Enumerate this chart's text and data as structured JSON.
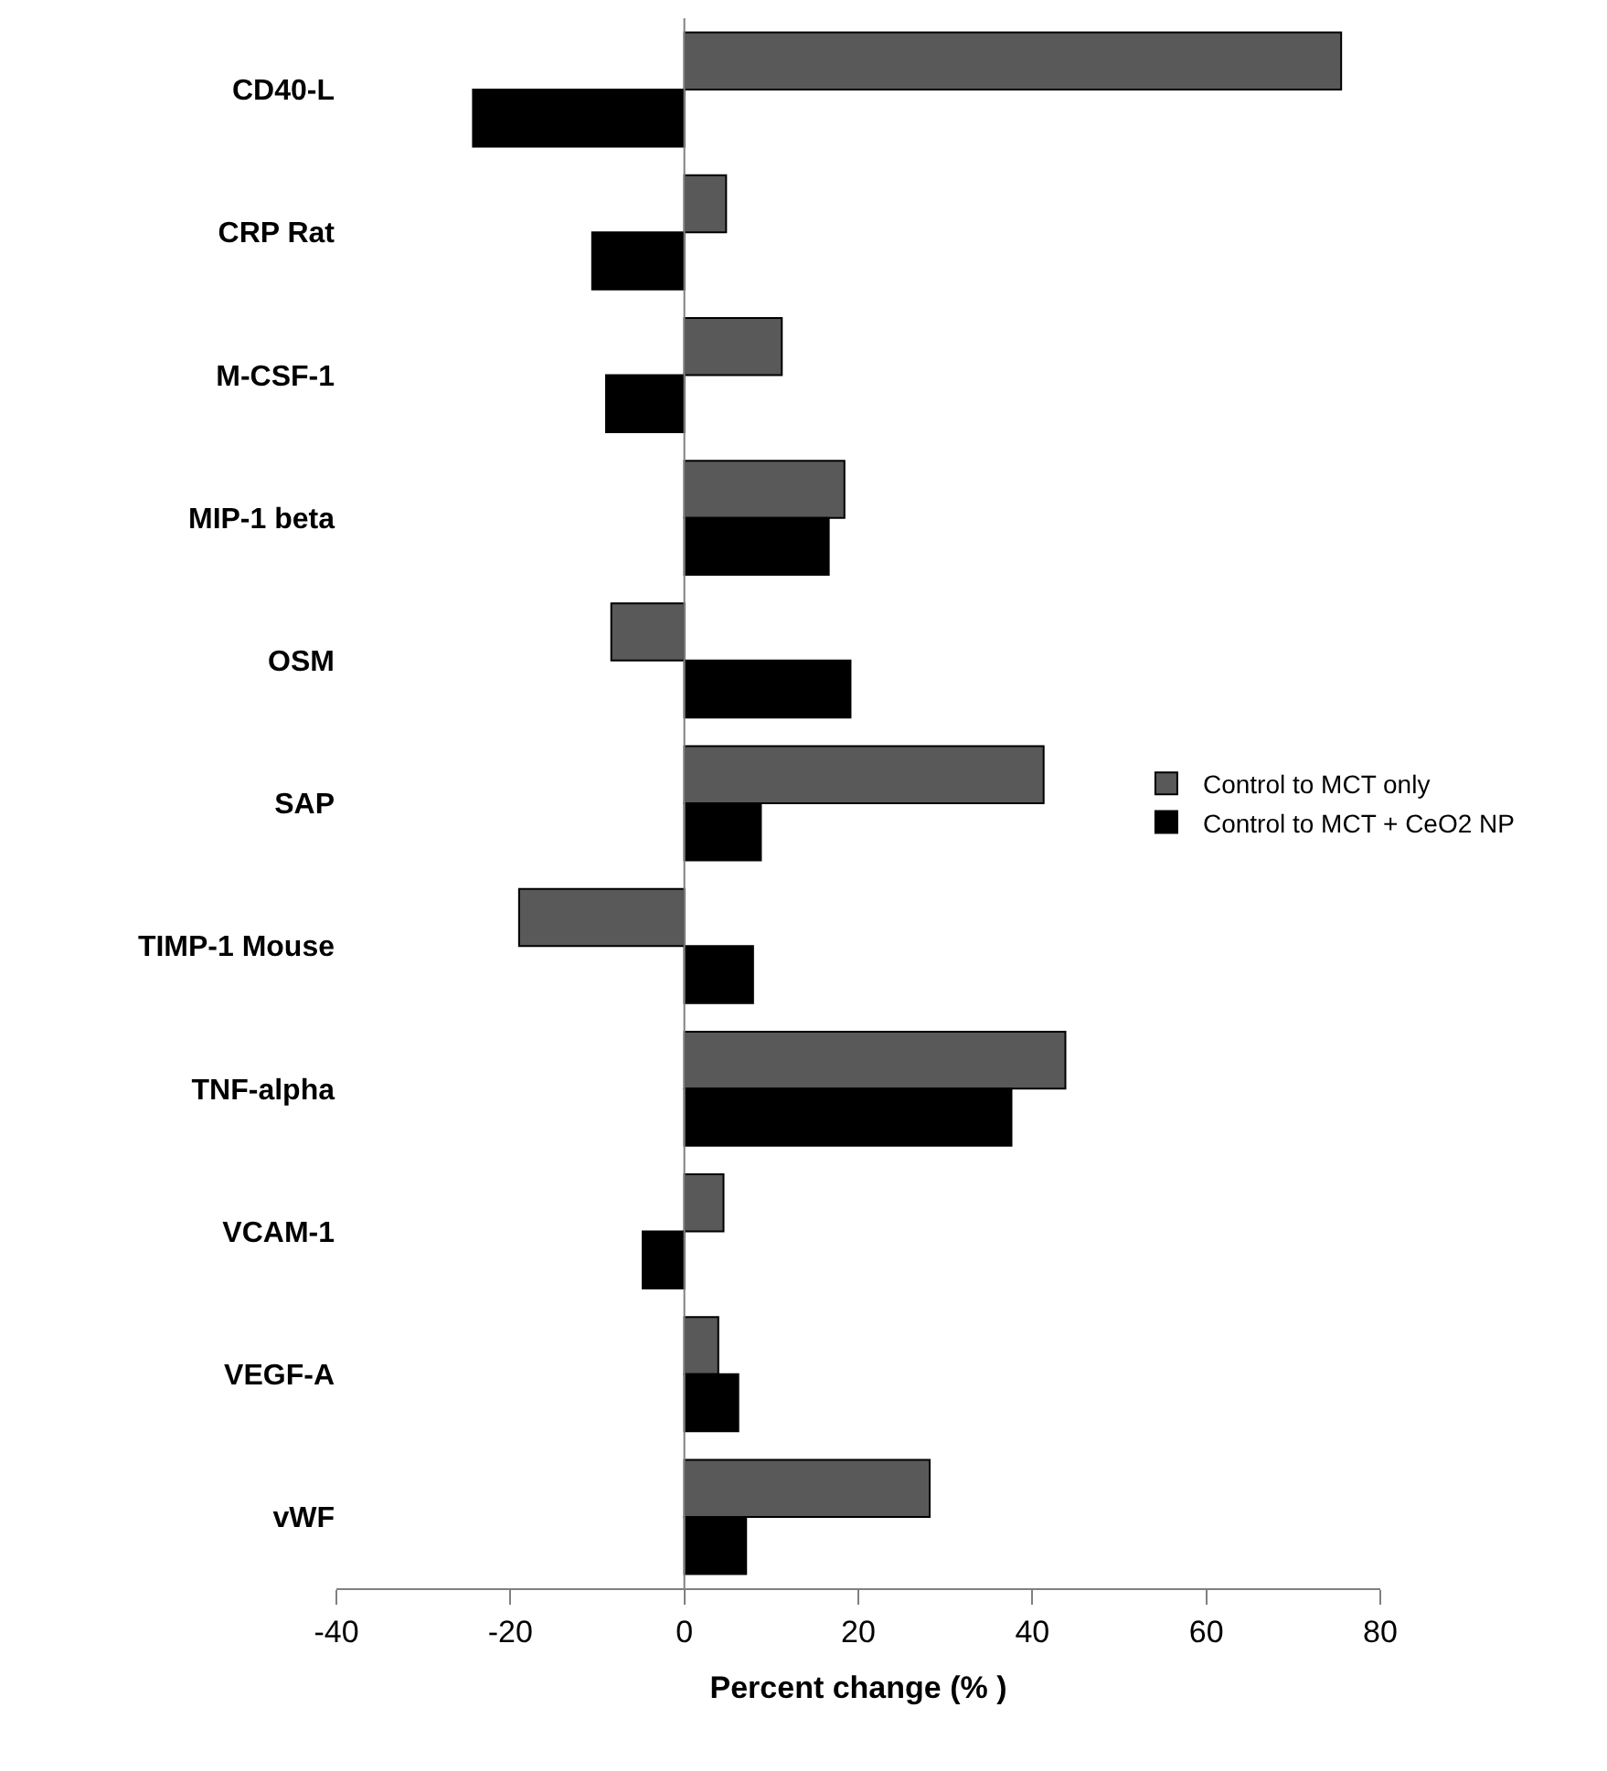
{
  "chart_data": {
    "type": "bar",
    "orientation": "horizontal",
    "xlabel": "Percent change (% )",
    "categories": [
      "CD40-L",
      "CRP Rat",
      "M-CSF-1",
      "MIP-1 beta",
      "OSM",
      "SAP",
      "TIMP-1 Mouse",
      "TNF-alpha",
      "VCAM-1",
      "VEGF-A",
      "vWF"
    ],
    "series": [
      {
        "name": "Control to MCT only",
        "color": "#595959",
        "values": [
          75.5,
          4.8,
          11.2,
          18.4,
          -8.4,
          41.3,
          -19.0,
          43.8,
          4.5,
          3.9,
          28.2
        ]
      },
      {
        "name": "Control to MCT + CeO2 NP",
        "color": "#000000",
        "values": [
          -24.3,
          -10.6,
          -9.0,
          16.6,
          19.1,
          8.8,
          7.9,
          37.6,
          -4.8,
          6.2,
          7.1
        ]
      }
    ],
    "xlim": [
      -40,
      80
    ],
    "xticks": [
      -40,
      -20,
      0,
      20,
      40,
      60,
      80
    ],
    "legend": "right",
    "ref_lines": [
      {
        "axis": "x",
        "value": 0,
        "color": "#808080",
        "line_style": "solid"
      }
    ]
  }
}
